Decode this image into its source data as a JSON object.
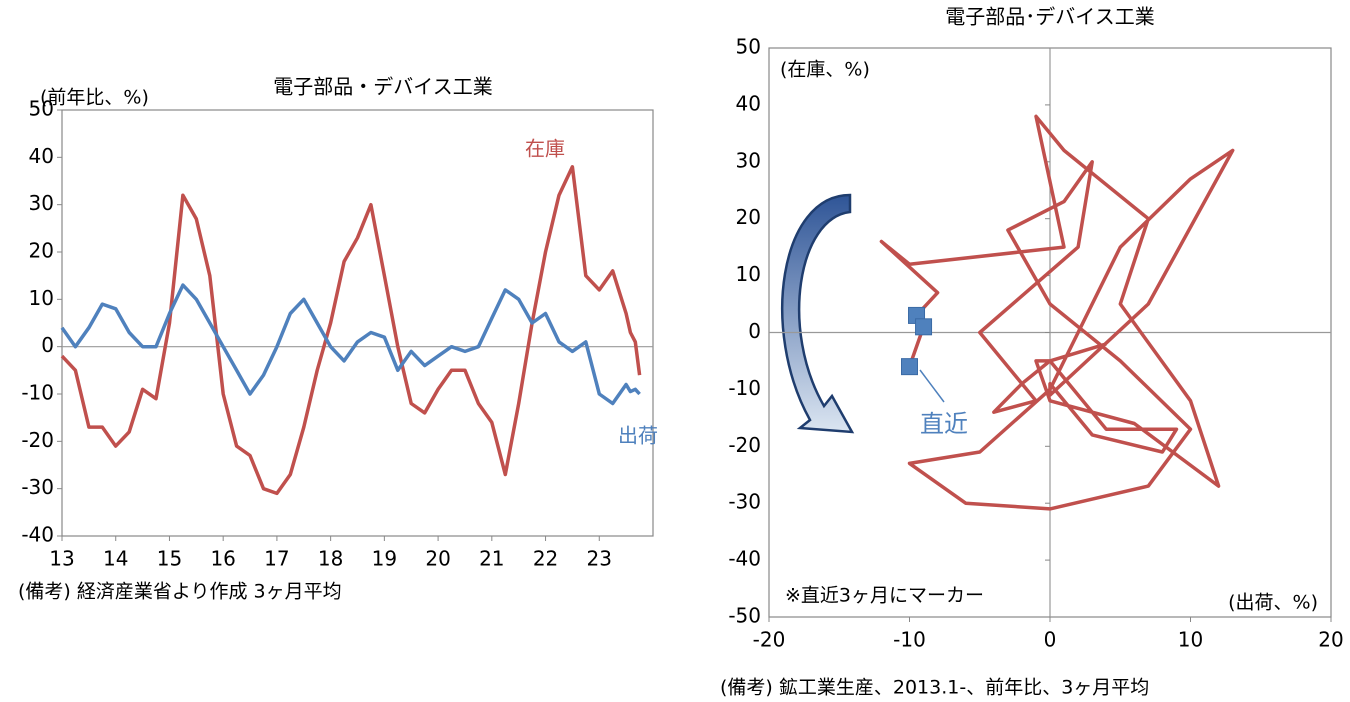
{
  "chart_data": [
    {
      "type": "line",
      "title": "電子部品・デバイス工業",
      "y_label": "(前年比、%)",
      "note": "(備考) 経済産業省より作成 3ヶ月平均",
      "x": [
        13,
        13.25,
        13.5,
        13.75,
        14,
        14.25,
        14.5,
        14.75,
        15,
        15.25,
        15.5,
        15.75,
        16,
        16.25,
        16.5,
        16.75,
        17,
        17.25,
        17.5,
        17.75,
        18,
        18.25,
        18.5,
        18.75,
        19,
        19.25,
        19.5,
        19.75,
        20,
        20.25,
        20.5,
        20.75,
        21,
        21.25,
        21.5,
        21.75,
        22,
        22.25,
        22.5,
        22.75,
        23,
        23.25,
        23.5,
        23.58,
        23.67,
        23.75
      ],
      "series": [
        {
          "name": "在庫",
          "color": "#c0504d",
          "values": [
            -2,
            -5,
            -17,
            -17,
            -21,
            -18,
            -9,
            -11,
            5,
            32,
            27,
            15,
            -10,
            -21,
            -23,
            -30,
            -31,
            -27,
            -17,
            -5,
            5,
            18,
            23,
            30,
            15,
            0,
            -12,
            -14,
            -9,
            -5,
            -5,
            -12,
            -16,
            -27,
            -12,
            5,
            20,
            32,
            38,
            15,
            12,
            16,
            7,
            3,
            1,
            -6
          ]
        },
        {
          "name": "出荷",
          "color": "#4f81bd",
          "values": [
            4,
            0,
            4,
            9,
            8,
            3,
            0,
            0,
            7,
            13,
            10,
            5,
            0,
            -5,
            -10,
            -6,
            0,
            7,
            10,
            5,
            0,
            -3,
            1,
            3,
            2,
            -5,
            -1,
            -4,
            -2,
            0,
            -1,
            0,
            6,
            12,
            10,
            5,
            7,
            1,
            -1,
            1,
            -10,
            -12,
            -8,
            -9.5,
            -9,
            -10
          ]
        }
      ],
      "xlim": [
        13,
        24
      ],
      "xticks": [
        13,
        14,
        15,
        16,
        17,
        18,
        19,
        20,
        21,
        22,
        23
      ],
      "ylim": [
        -40,
        50
      ],
      "yticks": [
        -40,
        -30,
        -20,
        -10,
        0,
        10,
        20,
        30,
        40,
        50
      ]
    },
    {
      "type": "line",
      "title": "電子部品･デバイス工業",
      "y_label": "(在庫、%)",
      "x_label": "(出荷、%)",
      "annotations": [
        "※直近3ヶ月にマーカー",
        "直近"
      ],
      "note": "(備考) 鉱工業生産、2013.1-、前年比、3ヶ月平均",
      "markers_last": 3,
      "series": [
        {
          "color": "#c0504d",
          "marker_color": "#4f81bd",
          "x": [
            4,
            0,
            4,
            9,
            8,
            3,
            0,
            0,
            7,
            13,
            10,
            5,
            0,
            -5,
            -10,
            -6,
            0,
            7,
            10,
            5,
            0,
            -3,
            1,
            3,
            2,
            -5,
            -1,
            -4,
            -2,
            0,
            -1,
            0,
            6,
            12,
            10,
            5,
            7,
            1,
            -1,
            1,
            -10,
            -12,
            -8,
            -9.5,
            -9,
            -10
          ],
          "y": [
            -2,
            -5,
            -17,
            -17,
            -21,
            -18,
            -9,
            -11,
            5,
            32,
            27,
            15,
            -10,
            -21,
            -23,
            -30,
            -31,
            -27,
            -17,
            -5,
            5,
            18,
            23,
            30,
            15,
            0,
            -12,
            -14,
            -9,
            -5,
            -5,
            -12,
            -16,
            -27,
            -12,
            5,
            20,
            32,
            38,
            15,
            12,
            16,
            7,
            3,
            1,
            -6
          ]
        }
      ],
      "xlim": [
        -20,
        20
      ],
      "xticks": [
        -20,
        -10,
        0,
        10,
        20
      ],
      "ylim": [
        -50,
        50
      ],
      "yticks": [
        -50,
        -40,
        -30,
        -20,
        -10,
        0,
        10,
        20,
        30,
        40,
        50
      ]
    }
  ]
}
